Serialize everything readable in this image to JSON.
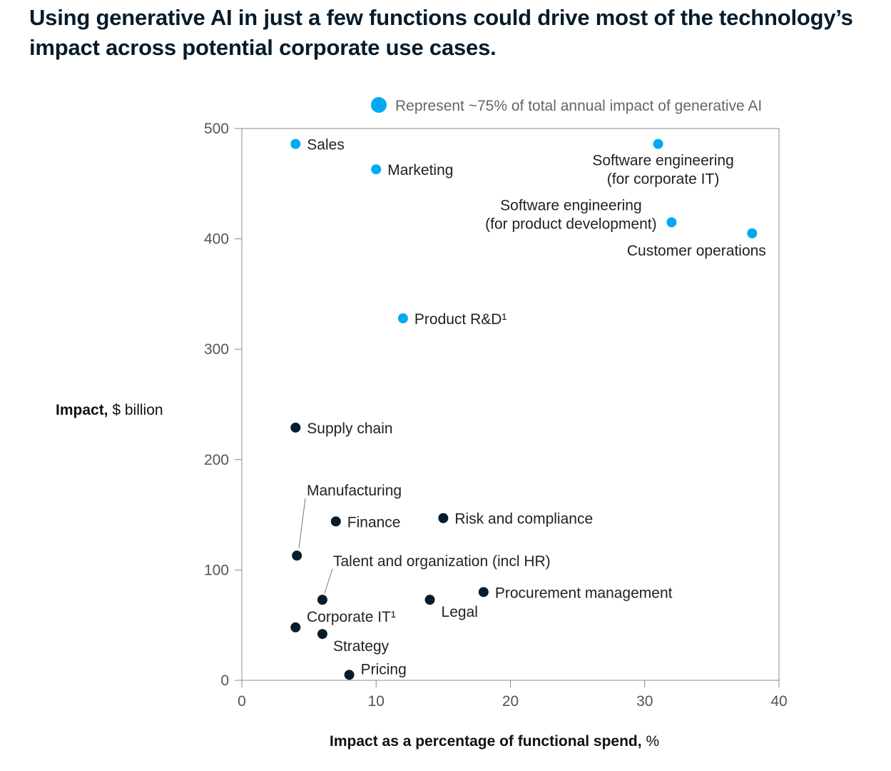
{
  "title": "Using generative AI in just a few functions could drive most of the technology’s impact across potential corporate use cases.",
  "colors": {
    "highlight": "#00a9f4",
    "other": "#051c2c",
    "axis": "#888888",
    "title": "#051c2c"
  },
  "chart_data": {
    "type": "scatter",
    "xlabel_bold": "Impact as a percentage of functional spend,",
    "xlabel_unit": " %",
    "ylabel_bold": "Impact,",
    "ylabel_unit": " $ billion",
    "xlim": [
      0,
      40
    ],
    "ylim": [
      0,
      500
    ],
    "xticks": [
      0,
      10,
      20,
      30,
      40
    ],
    "yticks": [
      0,
      100,
      200,
      300,
      400,
      500
    ],
    "grid": false,
    "legend": {
      "placement": "top",
      "label": "Represent ~75% of total annual impact of generative AI"
    },
    "points": [
      {
        "label": "Sales",
        "x": 4,
        "y": 486,
        "highlight": true
      },
      {
        "label": "Marketing",
        "x": 10,
        "y": 463,
        "highlight": true
      },
      {
        "label": "Software engineering (for corporate IT)",
        "lines": [
          "Software engineering",
          "(for corporate IT)"
        ],
        "x": 31,
        "y": 486,
        "highlight": true
      },
      {
        "label": "Software engineering (for product development)",
        "lines": [
          "Software engineering",
          "(for product development)"
        ],
        "x": 32,
        "y": 415,
        "highlight": true
      },
      {
        "label": "Customer operations",
        "x": 38,
        "y": 405,
        "highlight": true
      },
      {
        "label": "Product R&D¹",
        "x": 12,
        "y": 328,
        "highlight": true
      },
      {
        "label": "Supply chain",
        "x": 4,
        "y": 229,
        "highlight": false
      },
      {
        "label": "Manufacturing",
        "x": 4.1,
        "y": 113,
        "highlight": false
      },
      {
        "label": "Finance",
        "x": 7,
        "y": 144,
        "highlight": false
      },
      {
        "label": "Risk and compliance",
        "x": 15,
        "y": 147,
        "highlight": false
      },
      {
        "label": "Talent and organization (incl HR)",
        "x": 6,
        "y": 73,
        "highlight": false
      },
      {
        "label": "Procurement management",
        "x": 18,
        "y": 80,
        "highlight": false
      },
      {
        "label": "Legal",
        "x": 14,
        "y": 73,
        "highlight": false
      },
      {
        "label": "Corporate IT¹",
        "x": 4,
        "y": 48,
        "highlight": false
      },
      {
        "label": "Strategy",
        "x": 6,
        "y": 42,
        "highlight": false
      },
      {
        "label": "Pricing",
        "x": 8,
        "y": 5,
        "highlight": false
      }
    ]
  }
}
